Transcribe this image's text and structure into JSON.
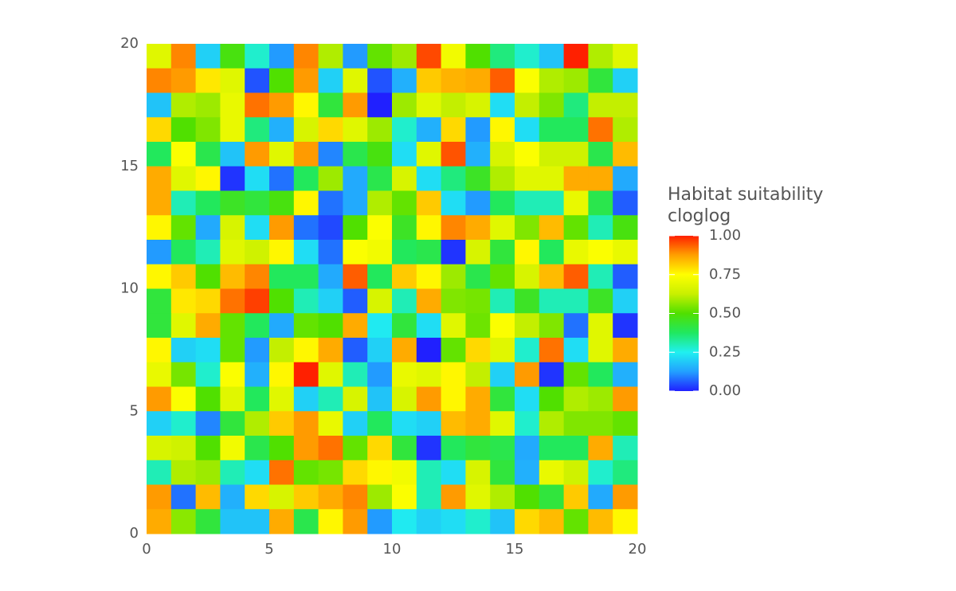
{
  "chart_data": {
    "type": "heatmap",
    "x": [
      0.5,
      1.5,
      2.5,
      3.5,
      4.5,
      5.5,
      6.5,
      7.5,
      8.5,
      9.5,
      10.5,
      11.5,
      12.5,
      13.5,
      14.5,
      15.5,
      16.5,
      17.5,
      18.5,
      19.5
    ],
    "y": [
      19.5,
      18.5,
      17.5,
      16.5,
      15.5,
      14.5,
      13.5,
      12.5,
      11.5,
      10.5,
      9.5,
      8.5,
      7.5,
      6.5,
      5.5,
      4.5,
      3.5,
      2.5,
      1.5,
      0.5
    ],
    "values": [
      [
        0.68,
        0.9,
        0.2,
        0.48,
        0.28,
        0.12,
        0.9,
        0.6,
        0.12,
        0.52,
        0.58,
        0.96,
        0.72,
        0.5,
        0.35,
        0.28,
        0.18,
        1.0,
        0.6,
        0.68
      ],
      [
        0.9,
        0.88,
        0.78,
        0.68,
        0.05,
        0.5,
        0.88,
        0.2,
        0.68,
        0.05,
        0.15,
        0.82,
        0.85,
        0.86,
        0.94,
        0.74,
        0.6,
        0.58,
        0.42,
        0.2
      ],
      [
        0.18,
        0.6,
        0.58,
        0.7,
        0.92,
        0.88,
        0.76,
        0.42,
        0.88,
        0.0,
        0.58,
        0.68,
        0.62,
        0.66,
        0.22,
        0.62,
        0.55,
        0.35,
        0.62,
        0.62
      ],
      [
        0.8,
        0.5,
        0.55,
        0.7,
        0.35,
        0.15,
        0.66,
        0.8,
        0.68,
        0.58,
        0.28,
        0.15,
        0.8,
        0.12,
        0.76,
        0.22,
        0.38,
        0.38,
        0.92,
        0.6
      ],
      [
        0.38,
        0.74,
        0.4,
        0.18,
        0.88,
        0.68,
        0.88,
        0.1,
        0.4,
        0.48,
        0.22,
        0.68,
        0.95,
        0.15,
        0.66,
        0.74,
        0.64,
        0.64,
        0.4,
        0.84
      ],
      [
        0.86,
        0.68,
        0.76,
        0.02,
        0.22,
        0.08,
        0.38,
        0.58,
        0.14,
        0.4,
        0.66,
        0.22,
        0.35,
        0.45,
        0.6,
        0.68,
        0.68,
        0.86,
        0.86,
        0.14
      ],
      [
        0.86,
        0.3,
        0.38,
        0.45,
        0.42,
        0.48,
        0.76,
        0.08,
        0.14,
        0.6,
        0.52,
        0.82,
        0.22,
        0.12,
        0.38,
        0.3,
        0.3,
        0.7,
        0.4,
        0.06
      ],
      [
        0.76,
        0.52,
        0.14,
        0.66,
        0.22,
        0.88,
        0.08,
        0.04,
        0.5,
        0.74,
        0.45,
        0.76,
        0.9,
        0.86,
        0.68,
        0.55,
        0.84,
        0.52,
        0.3,
        0.48
      ],
      [
        0.12,
        0.38,
        0.3,
        0.68,
        0.64,
        0.76,
        0.22,
        0.08,
        0.74,
        0.72,
        0.38,
        0.4,
        0.02,
        0.66,
        0.42,
        0.76,
        0.38,
        0.7,
        0.74,
        0.7
      ],
      [
        0.76,
        0.82,
        0.5,
        0.84,
        0.9,
        0.38,
        0.38,
        0.14,
        0.94,
        0.38,
        0.82,
        0.76,
        0.58,
        0.4,
        0.52,
        0.66,
        0.84,
        0.94,
        0.3,
        0.06
      ],
      [
        0.42,
        0.78,
        0.8,
        0.92,
        0.97,
        0.5,
        0.3,
        0.2,
        0.06,
        0.66,
        0.3,
        0.86,
        0.55,
        0.54,
        0.3,
        0.45,
        0.3,
        0.3,
        0.45,
        0.2
      ],
      [
        0.42,
        0.68,
        0.86,
        0.52,
        0.38,
        0.14,
        0.52,
        0.5,
        0.86,
        0.24,
        0.42,
        0.22,
        0.68,
        0.53,
        0.74,
        0.62,
        0.55,
        0.08,
        0.68,
        0.02
      ],
      [
        0.76,
        0.2,
        0.22,
        0.52,
        0.12,
        0.62,
        0.76,
        0.86,
        0.06,
        0.2,
        0.86,
        0.0,
        0.52,
        0.8,
        0.68,
        0.28,
        0.92,
        0.22,
        0.68,
        0.86
      ],
      [
        0.7,
        0.54,
        0.28,
        0.74,
        0.15,
        0.76,
        1.0,
        0.68,
        0.3,
        0.12,
        0.7,
        0.68,
        0.76,
        0.62,
        0.2,
        0.88,
        0.02,
        0.52,
        0.38,
        0.15
      ],
      [
        0.88,
        0.74,
        0.5,
        0.68,
        0.38,
        0.68,
        0.2,
        0.3,
        0.66,
        0.18,
        0.66,
        0.88,
        0.76,
        0.86,
        0.42,
        0.22,
        0.5,
        0.6,
        0.58,
        0.88
      ],
      [
        0.2,
        0.28,
        0.1,
        0.42,
        0.6,
        0.82,
        0.88,
        0.7,
        0.2,
        0.38,
        0.22,
        0.2,
        0.84,
        0.86,
        0.68,
        0.28,
        0.6,
        0.55,
        0.55,
        0.52
      ],
      [
        0.66,
        0.64,
        0.5,
        0.72,
        0.4,
        0.5,
        0.88,
        0.92,
        0.52,
        0.8,
        0.42,
        0.02,
        0.38,
        0.42,
        0.4,
        0.14,
        0.38,
        0.38,
        0.86,
        0.3
      ],
      [
        0.3,
        0.6,
        0.58,
        0.3,
        0.22,
        0.92,
        0.52,
        0.54,
        0.8,
        0.76,
        0.72,
        0.3,
        0.22,
        0.66,
        0.42,
        0.15,
        0.7,
        0.64,
        0.28,
        0.35
      ],
      [
        0.88,
        0.08,
        0.84,
        0.15,
        0.8,
        0.66,
        0.82,
        0.86,
        0.9,
        0.58,
        0.74,
        0.3,
        0.88,
        0.68,
        0.6,
        0.5,
        0.42,
        0.82,
        0.14,
        0.88
      ],
      [
        0.86,
        0.56,
        0.42,
        0.18,
        0.18,
        0.86,
        0.4,
        0.76,
        0.88,
        0.12,
        0.24,
        0.2,
        0.22,
        0.28,
        0.18,
        0.8,
        0.84,
        0.52,
        0.84,
        0.76
      ]
    ],
    "xlim": [
      0,
      20
    ],
    "ylim": [
      0,
      20
    ],
    "xticks": [
      0,
      5,
      10,
      15,
      20
    ],
    "yticks": [
      0,
      5,
      10,
      15,
      20
    ],
    "legend_title": [
      "Habitat suitability",
      "cloglog"
    ],
    "clim": [
      0,
      1
    ],
    "colorbar_ticks": [
      {
        "value": 0,
        "label": "0.00"
      },
      {
        "value": 0.25,
        "label": "0.25"
      },
      {
        "value": 0.5,
        "label": "0.50"
      },
      {
        "value": 0.75,
        "label": "0.75"
      },
      {
        "value": 1,
        "label": "1.00"
      }
    ],
    "colorscale": [
      "#2020ff",
      "#22a0ff",
      "#20f0f0",
      "#20e860",
      "#50e000",
      "#c8f000",
      "#ffff00",
      "#ffa000",
      "#ff2000"
    ]
  }
}
